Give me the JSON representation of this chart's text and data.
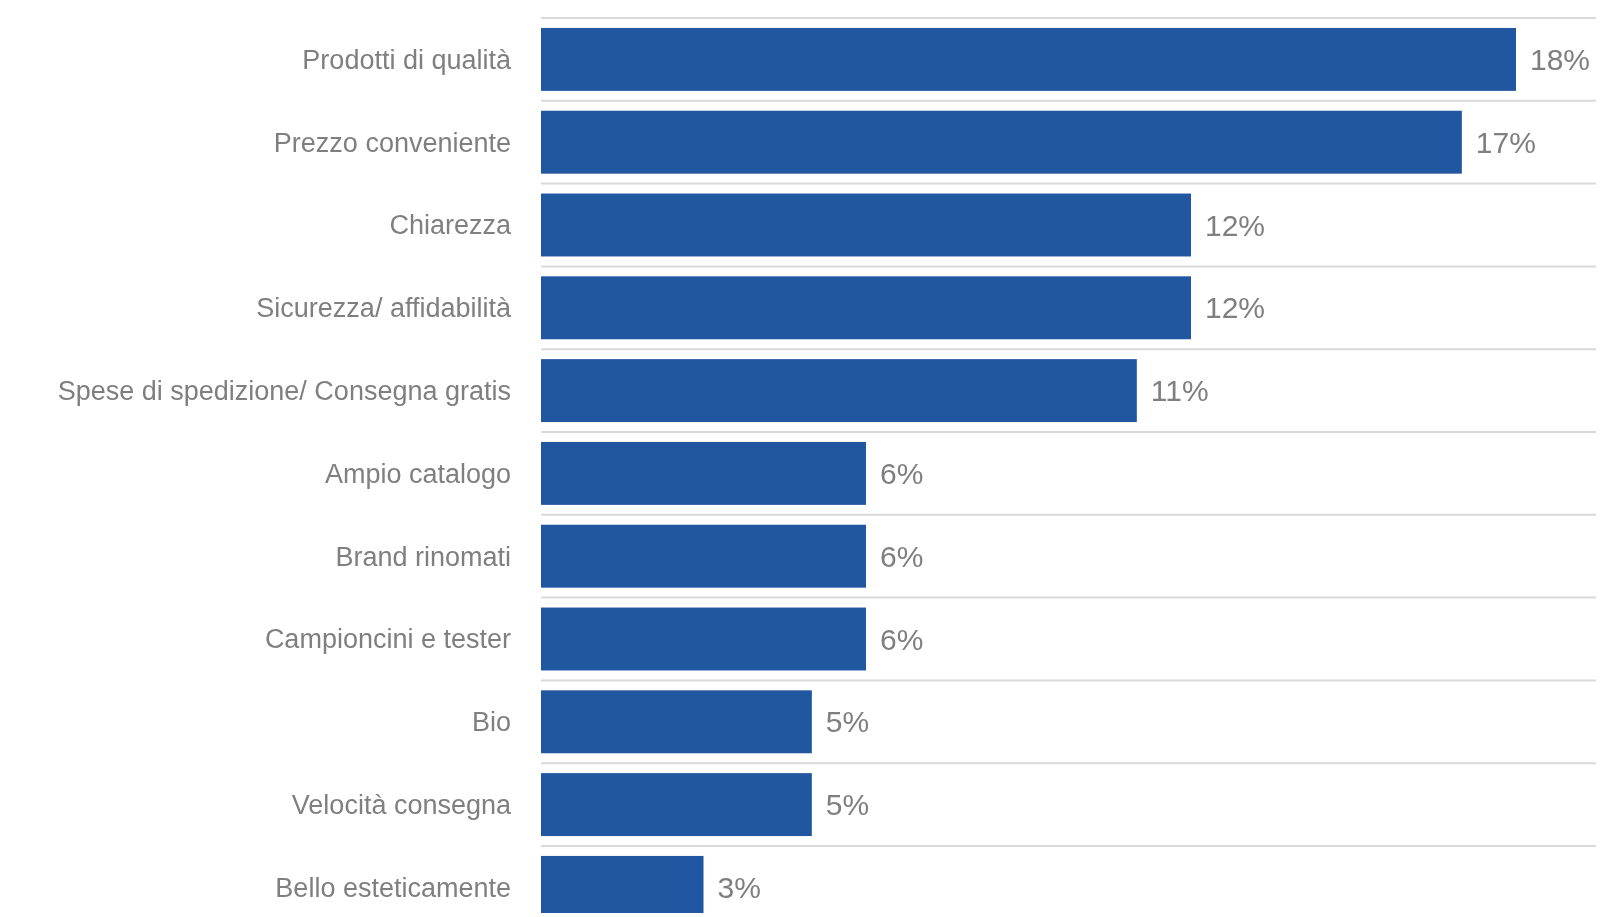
{
  "chart_data": {
    "type": "bar",
    "orientation": "horizontal",
    "categories": [
      "Prodotti di qualità",
      "Prezzo conveniente",
      "Chiarezza",
      "Sicurezza/ affidabilità",
      "Spese di spedizione/ Consegna gratis",
      "Ampio catalogo",
      "Brand rinomati",
      "Campioncini e tester",
      "Bio",
      "Velocità consegna",
      "Bello esteticamente"
    ],
    "values": [
      18,
      17,
      12,
      12,
      11,
      6,
      6,
      6,
      5,
      5,
      3
    ],
    "value_labels": [
      "18%",
      "17%",
      "12%",
      "12%",
      "11%",
      "6%",
      "6%",
      "6%",
      "5%",
      "5%",
      "3%"
    ],
    "color": "#2156a0",
    "grid": "y"
  }
}
